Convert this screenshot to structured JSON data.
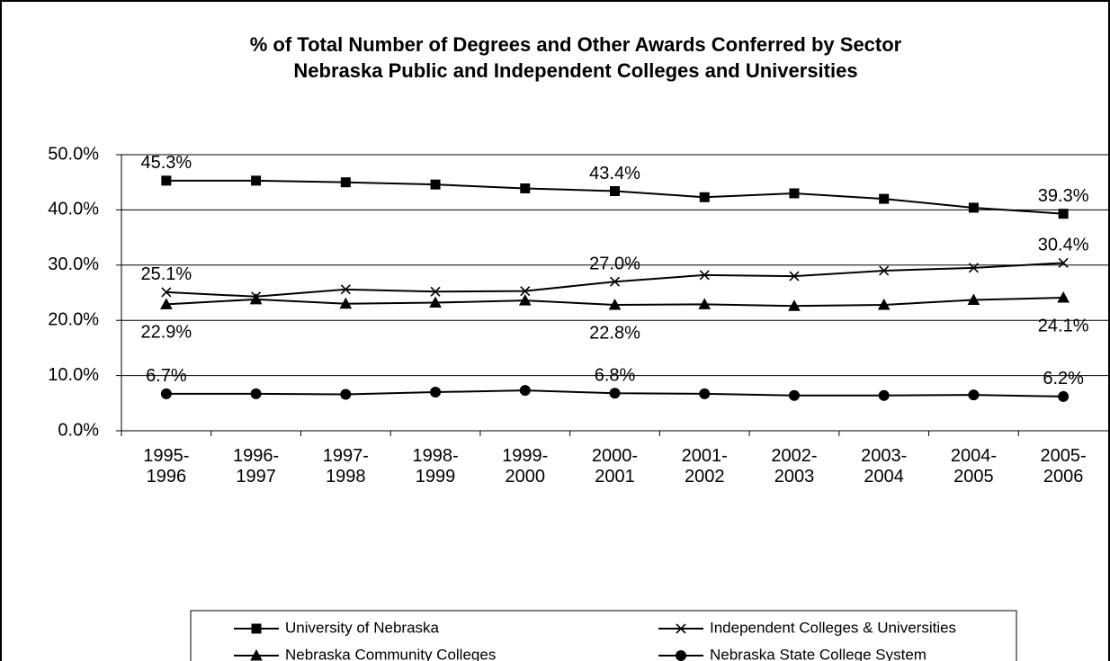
{
  "chart_data": {
    "type": "line",
    "title": "% of Total Number of Degrees and Other Awards Conferred by Sector",
    "subtitle": "Nebraska Public and Independent Colleges and Universities",
    "categories": [
      "1995-1996",
      "1996-1997",
      "1997-1998",
      "1998-1999",
      "1999-2000",
      "2000-2001",
      "2001-2002",
      "2002-2003",
      "2003-2004",
      "2004-2005",
      "2005-2006"
    ],
    "ylim": [
      0,
      50
    ],
    "yticks": [
      {
        "value": 0,
        "label": "0.0%"
      },
      {
        "value": 10,
        "label": "10.0%"
      },
      {
        "value": 20,
        "label": "20.0%"
      },
      {
        "value": 30,
        "label": "30.0%"
      },
      {
        "value": 40,
        "label": "40.0%"
      },
      {
        "value": 50,
        "label": "50.0%"
      }
    ],
    "grid": true,
    "legend": "bottom",
    "series": [
      {
        "name": "University of Nebraska",
        "color": "#000000",
        "marker": "square",
        "label_position": "above",
        "values": [
          45.3,
          45.3,
          45.0,
          44.6,
          43.9,
          43.4,
          42.3,
          43.0,
          42.0,
          40.4,
          39.3
        ],
        "value_labels": [
          "45.3%",
          null,
          null,
          null,
          null,
          "43.4%",
          null,
          null,
          null,
          null,
          "39.3%"
        ]
      },
      {
        "name": "Independent Colleges & Universities",
        "color": "#000000",
        "marker": "x",
        "label_position": "above",
        "values": [
          25.1,
          24.3,
          25.6,
          25.2,
          25.3,
          27.0,
          28.2,
          28.0,
          29.0,
          29.5,
          30.4
        ],
        "value_labels": [
          "25.1%",
          null,
          null,
          null,
          null,
          "27.0%",
          null,
          null,
          null,
          null,
          "30.4%"
        ]
      },
      {
        "name": "Nebraska Community Colleges",
        "color": "#000000",
        "marker": "triangle",
        "label_position": "below",
        "values": [
          22.9,
          23.8,
          23.0,
          23.2,
          23.6,
          22.8,
          22.9,
          22.6,
          22.8,
          23.7,
          24.1
        ],
        "value_labels": [
          "22.9%",
          null,
          null,
          null,
          null,
          "22.8%",
          null,
          null,
          null,
          null,
          "24.1%"
        ]
      },
      {
        "name": "Nebraska State College System",
        "color": "#000000",
        "marker": "circle",
        "label_position": "above",
        "values": [
          6.7,
          6.7,
          6.6,
          7.0,
          7.3,
          6.8,
          6.7,
          6.4,
          6.4,
          6.5,
          6.2
        ],
        "value_labels": [
          "6.7%",
          null,
          null,
          null,
          null,
          "6.8%",
          null,
          null,
          null,
          null,
          "6.2%"
        ]
      }
    ]
  }
}
